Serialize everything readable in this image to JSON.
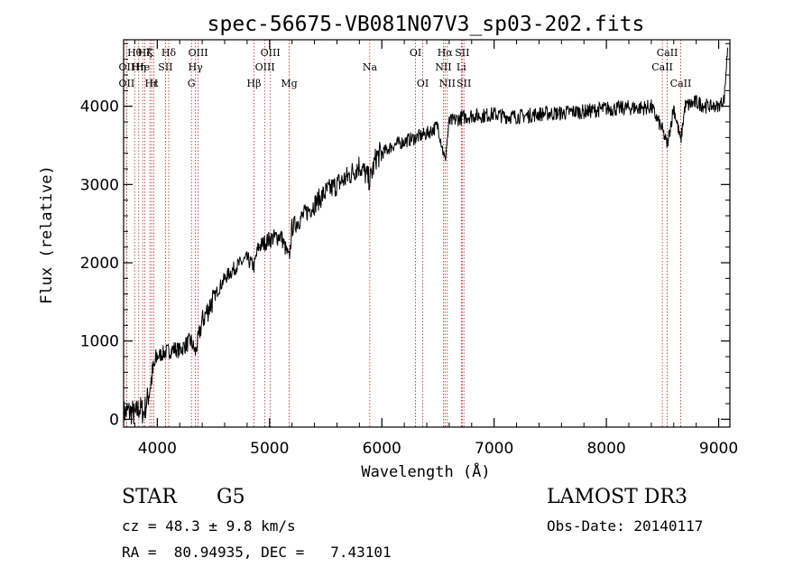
{
  "chart_data": {
    "type": "line",
    "title": "spec-56675-VB081N07V3_sp03-202.fits",
    "xlabel": "Wavelength (Å)",
    "ylabel": "Flux (relative)",
    "xlim": [
      3700,
      9100
    ],
    "ylim": [
      -100,
      4850
    ],
    "xticks": [
      4000,
      5000,
      6000,
      7000,
      8000,
      9000
    ],
    "yticks": [
      0,
      1000,
      2000,
      3000,
      4000
    ],
    "xtick_labels": [
      "4000",
      "5000",
      "6000",
      "7000",
      "8000",
      "9000"
    ],
    "ytick_labels": [
      "0",
      "1000",
      "2000",
      "3000",
      "4000"
    ],
    "series": [
      {
        "name": "flux",
        "x": [
          3700,
          3740,
          3780,
          3800,
          3840,
          3880,
          3920,
          3960,
          4000,
          4060,
          4101,
          4150,
          4200,
          4250,
          4300,
          4340,
          4400,
          4500,
          4600,
          4700,
          4800,
          4861,
          4900,
          5000,
          5100,
          5175,
          5200,
          5300,
          5400,
          5500,
          5600,
          5700,
          5800,
          5893,
          5950,
          6000,
          6100,
          6200,
          6300,
          6400,
          6500,
          6563,
          6600,
          6700,
          6800,
          6900,
          7000,
          7100,
          7200,
          7300,
          7400,
          7500,
          7600,
          7700,
          7800,
          7900,
          8000,
          8100,
          8200,
          8300,
          8400,
          8498,
          8542,
          8600,
          8662,
          8700,
          8800,
          8900,
          8950,
          9000,
          9050,
          9080
        ],
        "y": [
          80,
          100,
          90,
          40,
          150,
          80,
          300,
          600,
          800,
          850,
          870,
          900,
          880,
          950,
          1000,
          850,
          1250,
          1550,
          1800,
          1950,
          2050,
          1950,
          2200,
          2300,
          2350,
          2050,
          2450,
          2600,
          2750,
          2900,
          3000,
          3100,
          3250,
          3050,
          3350,
          3400,
          3500,
          3550,
          3600,
          3650,
          3750,
          3300,
          3800,
          3850,
          3880,
          3880,
          3900,
          3870,
          3870,
          3880,
          3900,
          3910,
          3910,
          3930,
          3930,
          3950,
          3970,
          3970,
          3980,
          3980,
          3990,
          3700,
          3500,
          3990,
          3550,
          4000,
          4050,
          4000,
          4000,
          4000,
          4100,
          4750
        ]
      }
    ],
    "lines": [
      {
        "wave": 3727,
        "label": "OII",
        "row": 2
      },
      {
        "wave": 3727,
        "label": "OII",
        "row": 3
      },
      {
        "wave": 3798,
        "label": "Hθ",
        "row": 1
      },
      {
        "wave": 3835,
        "label": "Hη",
        "row": 2
      },
      {
        "wave": 3870,
        "label": "He",
        "row": 2
      },
      {
        "wave": 3889,
        "label": "Hζ",
        "row": 1
      },
      {
        "wave": 3934,
        "label": "K",
        "row": 1
      },
      {
        "wave": 3950,
        "label": "Hε",
        "row": 3
      },
      {
        "wave": 3969,
        "label": "H",
        "row": 3
      },
      {
        "wave": 4073,
        "label": "SII",
        "row": 2
      },
      {
        "wave": 4102,
        "label": "Hδ",
        "row": 1
      },
      {
        "wave": 4304,
        "label": "G",
        "row": 3
      },
      {
        "wave": 4340,
        "label": "Hγ",
        "row": 2
      },
      {
        "wave": 4364,
        "label": "OIII",
        "row": 1
      },
      {
        "wave": 4861,
        "label": "Hβ",
        "row": 3
      },
      {
        "wave": 4959,
        "label": "OIII",
        "row": 2
      },
      {
        "wave": 5007,
        "label": "OIII",
        "row": 1
      },
      {
        "wave": 5175,
        "label": "Mg",
        "row": 3
      },
      {
        "wave": 5893,
        "label": "Na",
        "row": 2
      },
      {
        "wave": 6300,
        "label": "OI",
        "row": 1
      },
      {
        "wave": 6364,
        "label": "OI",
        "row": 3
      },
      {
        "wave": 6548,
        "label": "NII",
        "row": 2
      },
      {
        "wave": 6563,
        "label": "Hα",
        "row": 1
      },
      {
        "wave": 6583,
        "label": "NII",
        "row": 3
      },
      {
        "wave": 6708,
        "label": "Li",
        "row": 2
      },
      {
        "wave": 6716,
        "label": "SII",
        "row": 1
      },
      {
        "wave": 6731,
        "label": "SII",
        "row": 3
      },
      {
        "wave": 8498,
        "label": "CaII",
        "row": 2
      },
      {
        "wave": 8542,
        "label": "CaII",
        "row": 1
      },
      {
        "wave": 8662,
        "label": "CaII",
        "row": 3
      }
    ],
    "colors": {
      "spectrum": "#000000",
      "line_markers": "#b22222",
      "axes": "#000000"
    }
  },
  "info": {
    "class_label": "STAR",
    "subclass_label": "G5",
    "survey_label": "LAMOST DR3",
    "cz_label": "cz = 48.3 ± 9.8 km/s",
    "obs_date_label": "Obs-Date: 20140117",
    "coords_label": "RA =  80.94935, DEC =   7.43101"
  }
}
